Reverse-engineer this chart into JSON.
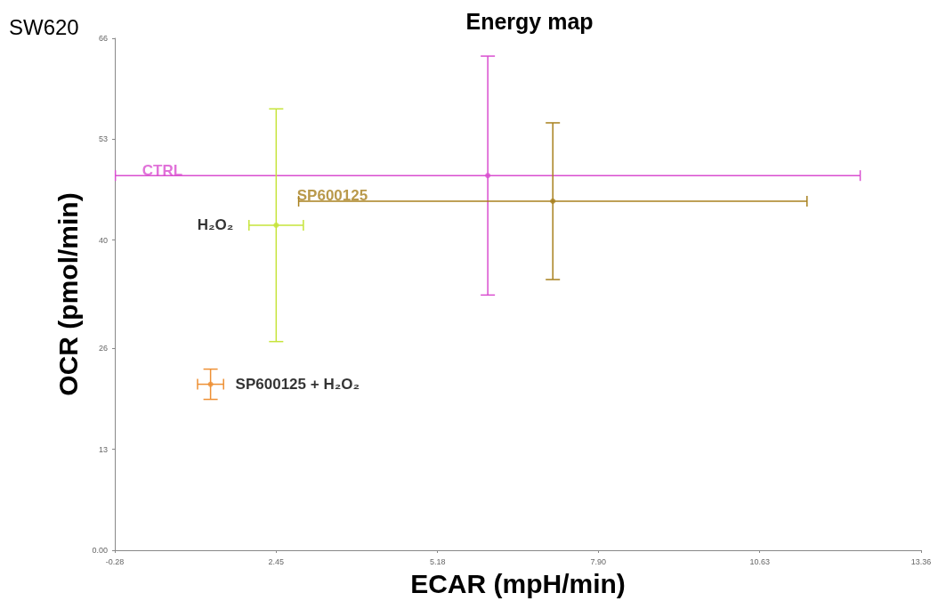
{
  "chart_data": {
    "type": "scatter",
    "title": "Energy map",
    "xlabel": "ECAR (mpH/min)",
    "ylabel": "OCR (pmol/min)",
    "annotations": [
      "SW620"
    ],
    "xlim": [
      -0.28,
      13.36
    ],
    "xticks": [
      -0.28,
      2.45,
      5.18,
      {
        "value": 7.9,
        "label": "7.90"
      },
      10.63,
      13.36
    ],
    "ylim": [
      0,
      66
    ],
    "yticks": [
      {
        "value": 0,
        "label": "0.00"
      },
      13,
      26,
      40,
      53,
      66
    ],
    "grid": false,
    "legend": false,
    "marker": "circle",
    "series": [
      {
        "name": "CTRL",
        "color": "#d94fd0",
        "x": [
          6.03
        ],
        "values": [
          48.3
        ],
        "errors": [
          15.4
        ],
        "xerrors": [
          6.3
        ]
      },
      {
        "name": "SP600125",
        "color": "#a8801e",
        "x": [
          7.13
        ],
        "values": [
          45.0
        ],
        "errors": [
          10.1
        ],
        "xerrors": [
          4.3
        ]
      },
      {
        "name": "H₂O₂",
        "color": "#c6e43a",
        "x": [
          2.45
        ],
        "values": [
          41.9
        ],
        "errors": [
          15.0
        ],
        "xerrors": [
          0.46
        ]
      },
      {
        "name": "SP600125 + H₂O₂",
        "color": "#ee9034",
        "x": [
          1.34
        ],
        "values": [
          21.4
        ],
        "errors": [
          1.95
        ],
        "xerrors": [
          0.22
        ]
      }
    ]
  }
}
